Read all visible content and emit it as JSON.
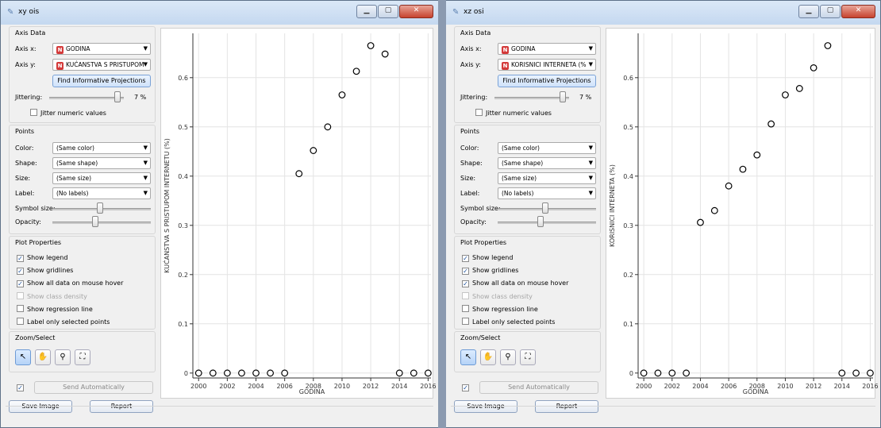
{
  "windows": [
    {
      "title": "xy ois",
      "axis_data": {
        "section_title": "Axis Data",
        "axis_x_label": "Axis x:",
        "axis_x_value": "GODINA",
        "axis_y_label": "Axis y:",
        "axis_y_value": "KUĆANSTVA S PRISTUPOM",
        "find_button": "Find Informative Projections",
        "jittering_label": "Jittering:",
        "jittering_value": "7 %",
        "jitter_numeric": "Jitter numeric values"
      },
      "points": {
        "section_title": "Points",
        "color_label": "Color:",
        "color_value": "(Same color)",
        "shape_label": "Shape:",
        "shape_value": "(Same shape)",
        "size_label": "Size:",
        "size_value": "(Same size)",
        "label_label": "Label:",
        "label_value": "(No labels)",
        "symbol_size_label": "Symbol size:",
        "opacity_label": "Opacity:"
      },
      "plot_properties": {
        "section_title": "Plot Properties",
        "show_legend": "Show legend",
        "show_gridlines": "Show gridlines",
        "show_all_data": "Show all data on mouse hover",
        "show_class_density": "Show class density",
        "show_regression": "Show regression line",
        "label_selected": "Label only selected points"
      },
      "zoom_select": {
        "section_title": "Zoom/Select"
      },
      "send_automatically": "Send Automatically",
      "save_image": "Save Image",
      "report": "Report",
      "chart_data": {
        "type": "scatter",
        "xlabel": "GODINA",
        "ylabel": "KUĆANSTVA S PRISTUPOM INTERNETU (%)",
        "xlim": [
          1999.6,
          2016.2
        ],
        "ylim": [
          -0.01,
          0.69
        ],
        "x_ticks": [
          "2000",
          "2002",
          "2004",
          "2006",
          "2008",
          "2010",
          "2012",
          "2014",
          "2016"
        ],
        "y_ticks": [
          "0",
          "0.1",
          "0.2",
          "0.3",
          "0.4",
          "0.5",
          "0.6"
        ],
        "grid": true,
        "x": [
          2000,
          2001,
          2002,
          2003,
          2004,
          2005,
          2006,
          2007,
          2008,
          2009,
          2010,
          2011,
          2012,
          2013,
          2014,
          2015,
          2016
        ],
        "y": [
          0,
          0,
          0,
          0,
          0,
          0,
          0,
          0.405,
          0.452,
          0.5,
          0.565,
          0.613,
          0.665,
          0.648,
          0,
          0,
          0
        ]
      }
    },
    {
      "title": "xz osi",
      "axis_data": {
        "section_title": "Axis Data",
        "axis_x_label": "Axis x:",
        "axis_x_value": "GODINA",
        "axis_y_label": "Axis y:",
        "axis_y_value": "KORISNICI INTERNETA (%",
        "find_button": "Find Informative Projections",
        "jittering_label": "Jittering:",
        "jittering_value": "7 %",
        "jitter_numeric": "Jitter numeric values"
      },
      "points": {
        "section_title": "Points",
        "color_label": "Color:",
        "color_value": "(Same color)",
        "shape_label": "Shape:",
        "shape_value": "(Same shape)",
        "size_label": "Size:",
        "size_value": "(Same size)",
        "label_label": "Label:",
        "label_value": "(No labels)",
        "symbol_size_label": "Symbol size:",
        "opacity_label": "Opacity:"
      },
      "plot_properties": {
        "section_title": "Plot Properties",
        "show_legend": "Show legend",
        "show_gridlines": "Show gridlines",
        "show_all_data": "Show all data on mouse hover",
        "show_class_density": "Show class density",
        "show_regression": "Show regression line",
        "label_selected": "Label only selected points"
      },
      "zoom_select": {
        "section_title": "Zoom/Select"
      },
      "send_automatically": "Send Automatically",
      "save_image": "Save Image",
      "report": "Report",
      "chart_data": {
        "type": "scatter",
        "xlabel": "GODINA",
        "ylabel": "KORISNICI INTERNETA (%)",
        "xlim": [
          1999.6,
          2016.2
        ],
        "ylim": [
          -0.01,
          0.69
        ],
        "x_ticks": [
          "2000",
          "2002",
          "2004",
          "2006",
          "2008",
          "2010",
          "2012",
          "2014",
          "2016"
        ],
        "y_ticks": [
          "0",
          "0.1",
          "0.2",
          "0.3",
          "0.4",
          "0.5",
          "0.6"
        ],
        "grid": true,
        "x": [
          2000,
          2001,
          2002,
          2003,
          2004,
          2005,
          2006,
          2007,
          2008,
          2009,
          2010,
          2011,
          2012,
          2013,
          2014,
          2015,
          2016
        ],
        "y": [
          0,
          0,
          0,
          0,
          0.306,
          0.33,
          0.38,
          0.414,
          0.443,
          0.506,
          0.565,
          0.578,
          0.62,
          0.665,
          0,
          0,
          0
        ]
      }
    }
  ]
}
